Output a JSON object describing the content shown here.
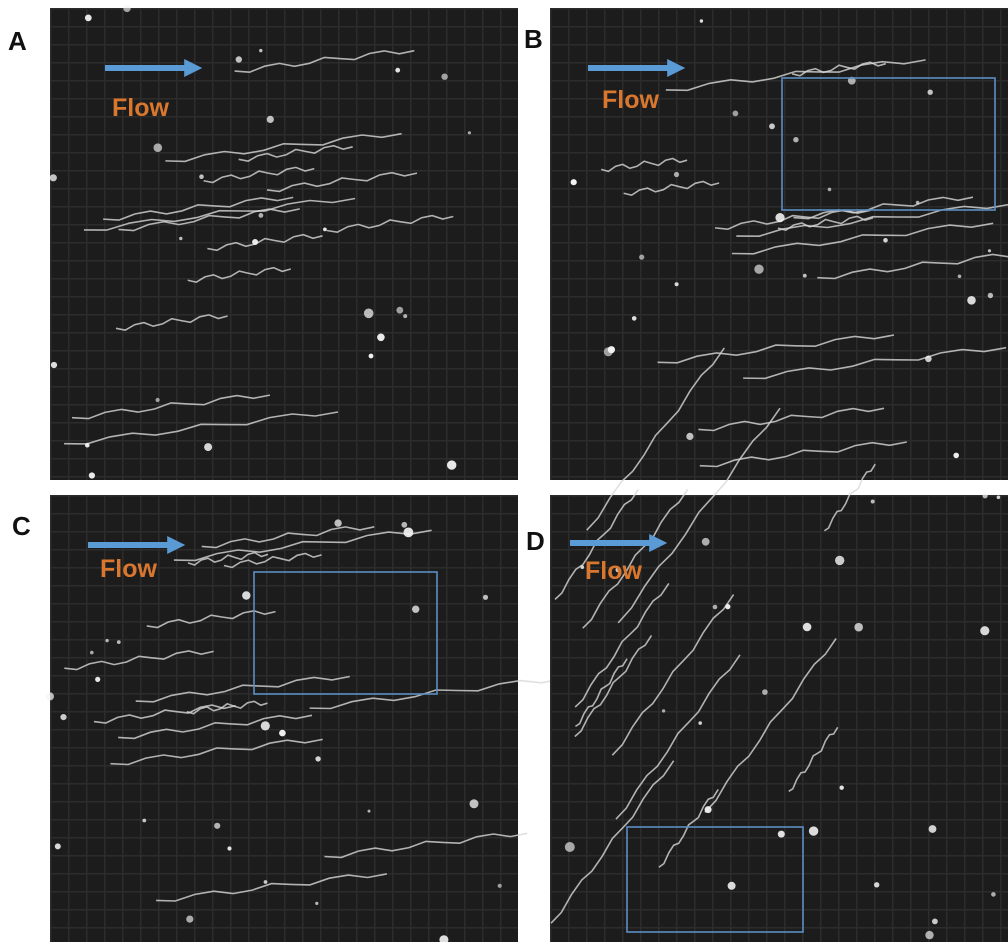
{
  "panels": [
    {
      "label": "A",
      "annotation": "Flow"
    },
    {
      "label": "B",
      "annotation": "Flow"
    },
    {
      "label": "C",
      "annotation": "Flow"
    },
    {
      "label": "D",
      "annotation": "Flow"
    }
  ]
}
